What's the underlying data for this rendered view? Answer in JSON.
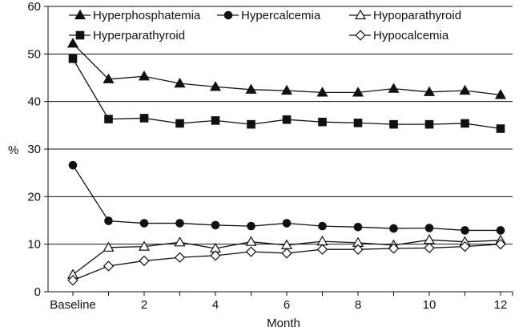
{
  "chart_data": {
    "type": "line",
    "title": "",
    "xlabel": "Month",
    "ylabel": "%",
    "x": [
      0,
      1,
      2,
      3,
      4,
      5,
      6,
      7,
      8,
      9,
      10,
      11,
      12
    ],
    "x_tick_values": [
      0,
      2,
      4,
      6,
      8,
      10,
      12
    ],
    "x_tick_labels": [
      "Baseline",
      "2",
      "4",
      "6",
      "8",
      "10",
      "12"
    ],
    "y_ticks": [
      0,
      10,
      20,
      30,
      40,
      50,
      60
    ],
    "ylim": [
      0,
      60
    ],
    "xlim": [
      0,
      12
    ],
    "grid": "horizontal",
    "legend_position": "top",
    "series": [
      {
        "name": "Hyperphosphatemia",
        "marker": "filled-triangle",
        "color": "#111111",
        "values": [
          52.2,
          44.7,
          45.3,
          43.8,
          43.1,
          42.5,
          42.3,
          41.9,
          41.9,
          42.7,
          42.0,
          42.3,
          41.4
        ]
      },
      {
        "name": "Hypercalcemia",
        "marker": "filled-circle",
        "color": "#111111",
        "values": [
          26.6,
          14.9,
          14.4,
          14.4,
          14.0,
          13.8,
          14.4,
          13.8,
          13.6,
          13.3,
          13.4,
          12.9,
          12.9
        ]
      },
      {
        "name": "Hypoparathyroid",
        "marker": "open-triangle",
        "color": "#111111",
        "values": [
          3.6,
          9.3,
          9.5,
          10.4,
          9.1,
          10.5,
          9.8,
          10.6,
          10.3,
          9.8,
          10.9,
          10.5,
          10.8
        ]
      },
      {
        "name": "Hyperparathyroid",
        "marker": "filled-square",
        "color": "#111111",
        "values": [
          49.0,
          36.3,
          36.5,
          35.4,
          36.0,
          35.2,
          36.2,
          35.7,
          35.5,
          35.2,
          35.2,
          35.4,
          34.3
        ]
      },
      {
        "name": "Hypocalcemia",
        "marker": "open-diamond",
        "color": "#111111",
        "values": [
          2.4,
          5.4,
          6.5,
          7.2,
          7.6,
          8.4,
          8.1,
          8.9,
          8.9,
          9.1,
          9.2,
          9.5,
          10.0
        ]
      }
    ]
  }
}
